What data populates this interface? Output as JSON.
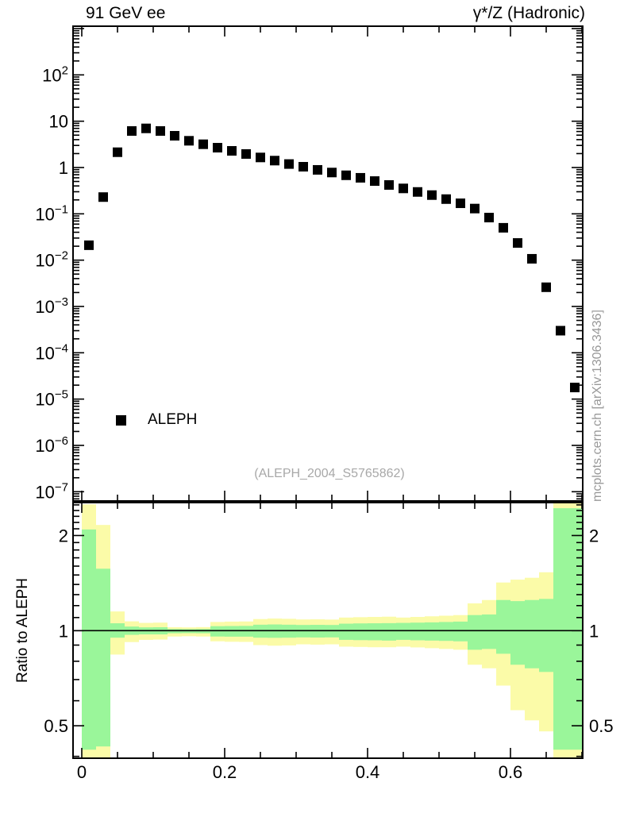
{
  "titles": {
    "left": "91 GeV ee",
    "right": "γ*/Z (Hadronic)"
  },
  "legend": {
    "items": [
      {
        "label": "ALEPH",
        "marker": "filled-black-square"
      }
    ]
  },
  "annotation": "(ALEPH_2004_S5765862)",
  "watermark": "mcplots.cern.ch [arXiv:1306.3436]",
  "ratio_axis_label": "Ratio to ALEPH",
  "colors": {
    "marker": "#000000",
    "frame": "#000000",
    "band_outer_yellow": "#fbfba8",
    "band_inner_green": "#9af69a",
    "gray_text": "#a8a8a8",
    "watermark_text": "#999999"
  },
  "chart_data": {
    "type": "scatter",
    "title": "91 GeV ee — γ*/Z (Hadronic)",
    "xlabel": "",
    "ylabel": "",
    "x_axis": {
      "range": [
        -0.012,
        0.701
      ],
      "major_ticks": [
        {
          "value": 0,
          "label": "0"
        },
        {
          "value": 0.2,
          "label": "0.2"
        },
        {
          "value": 0.4,
          "label": "0.4"
        },
        {
          "value": 0.6,
          "label": "0.6"
        }
      ],
      "minor_tick_step": 0.05
    },
    "main_panel": {
      "yscale": "log",
      "ylim": [
        6.3e-08,
        1120
      ],
      "ytick_labels": [
        {
          "value": 100,
          "mant": "10",
          "exp": "2"
        },
        {
          "value": 10,
          "mant": "10"
        },
        {
          "value": 1,
          "mant": "1"
        },
        {
          "value": 0.1,
          "mant": "10",
          "exp": "−1"
        },
        {
          "value": 0.01,
          "mant": "10",
          "exp": "−2"
        },
        {
          "value": 0.001,
          "mant": "10",
          "exp": "−3"
        },
        {
          "value": 0.0001,
          "mant": "10",
          "exp": "−4"
        },
        {
          "value": 1e-05,
          "mant": "10",
          "exp": "−5"
        },
        {
          "value": 1e-06,
          "mant": "10",
          "exp": "−6"
        },
        {
          "value": 1e-07,
          "mant": "10",
          "exp": "−7"
        }
      ],
      "series": [
        {
          "name": "ALEPH",
          "marker": "filled-square",
          "color": "#000000"
        }
      ],
      "points_x": [
        0.01,
        0.03,
        0.05,
        0.07,
        0.09,
        0.11,
        0.13,
        0.15,
        0.17,
        0.19,
        0.21,
        0.23,
        0.25,
        0.27,
        0.29,
        0.31,
        0.33,
        0.35,
        0.37,
        0.39,
        0.41,
        0.43,
        0.45,
        0.47,
        0.49,
        0.51,
        0.53,
        0.55,
        0.57,
        0.59,
        0.61,
        0.63,
        0.65,
        0.67,
        0.69
      ],
      "points_y": [
        0.021,
        0.23,
        2.14,
        6.15,
        7.0,
        6.15,
        4.85,
        3.78,
        3.18,
        2.68,
        2.29,
        1.96,
        1.65,
        1.41,
        1.19,
        1.04,
        0.89,
        0.78,
        0.68,
        0.6,
        0.51,
        0.42,
        0.354,
        0.297,
        0.254,
        0.208,
        0.169,
        0.13,
        0.083,
        0.05,
        0.0235,
        0.0107,
        0.0026,
        0.0003,
        1.78e-05
      ]
    },
    "ratio_panel": {
      "yscale": "log",
      "ylim": [
        0.394,
        2.54
      ],
      "unity_line": 1,
      "ytick_labels": [
        {
          "value": 2,
          "label": "2"
        },
        {
          "value": 1,
          "label": "1"
        },
        {
          "value": 0.5,
          "label": "0.5"
        }
      ],
      "minor_ticks": [
        0.4,
        0.6,
        0.7,
        0.8,
        0.9,
        1.1,
        1.2,
        1.3,
        1.4,
        1.5,
        1.6,
        1.7,
        1.8,
        1.9,
        2.1,
        2.2,
        2.3,
        2.4,
        2.5
      ],
      "bands": [
        {
          "x0": 0.0,
          "x1": 0.02,
          "outer": [
            0.39,
            2.51
          ],
          "inner": [
            0.42,
            2.09
          ]
        },
        {
          "x0": 0.02,
          "x1": 0.04,
          "outer": [
            0.39,
            2.16
          ],
          "inner": [
            0.43,
            1.57
          ]
        },
        {
          "x0": 0.04,
          "x1": 0.06,
          "outer": [
            0.84,
            1.15
          ],
          "inner": [
            0.95,
            1.055
          ]
        },
        {
          "x0": 0.06,
          "x1": 0.08,
          "outer": [
            0.92,
            1.07
          ],
          "inner": [
            0.97,
            1.03
          ]
        },
        {
          "x0": 0.08,
          "x1": 0.1,
          "outer": [
            0.935,
            1.058
          ],
          "inner": [
            0.973,
            1.024
          ]
        },
        {
          "x0": 0.1,
          "x1": 0.12,
          "outer": [
            0.937,
            1.06
          ],
          "inner": [
            0.973,
            1.025
          ]
        },
        {
          "x0": 0.12,
          "x1": 0.14,
          "outer": [
            0.958,
            1.025
          ],
          "inner": [
            0.981,
            1.012
          ]
        },
        {
          "x0": 0.14,
          "x1": 0.16,
          "outer": [
            0.96,
            1.024
          ],
          "inner": [
            0.982,
            1.011
          ]
        },
        {
          "x0": 0.16,
          "x1": 0.18,
          "outer": [
            0.958,
            1.026
          ],
          "inner": [
            0.981,
            1.012
          ]
        },
        {
          "x0": 0.18,
          "x1": 0.2,
          "outer": [
            0.925,
            1.065
          ],
          "inner": [
            0.958,
            1.033
          ]
        },
        {
          "x0": 0.2,
          "x1": 0.22,
          "outer": [
            0.922,
            1.068
          ],
          "inner": [
            0.957,
            1.034
          ]
        },
        {
          "x0": 0.22,
          "x1": 0.24,
          "outer": [
            0.921,
            1.069
          ],
          "inner": [
            0.957,
            1.035
          ]
        },
        {
          "x0": 0.24,
          "x1": 0.26,
          "outer": [
            0.9,
            1.088
          ],
          "inner": [
            0.95,
            1.044
          ]
        },
        {
          "x0": 0.26,
          "x1": 0.28,
          "outer": [
            0.896,
            1.092
          ],
          "inner": [
            0.949,
            1.046
          ]
        },
        {
          "x0": 0.28,
          "x1": 0.3,
          "outer": [
            0.898,
            1.09
          ],
          "inner": [
            0.95,
            1.044
          ]
        },
        {
          "x0": 0.3,
          "x1": 0.32,
          "outer": [
            0.905,
            1.085
          ],
          "inner": [
            0.952,
            1.042
          ]
        },
        {
          "x0": 0.32,
          "x1": 0.34,
          "outer": [
            0.903,
            1.086
          ],
          "inner": [
            0.951,
            1.043
          ]
        },
        {
          "x0": 0.34,
          "x1": 0.36,
          "outer": [
            0.905,
            1.084
          ],
          "inner": [
            0.952,
            1.042
          ]
        },
        {
          "x0": 0.36,
          "x1": 0.38,
          "outer": [
            0.89,
            1.1
          ],
          "inner": [
            0.935,
            1.052
          ]
        },
        {
          "x0": 0.38,
          "x1": 0.4,
          "outer": [
            0.888,
            1.103
          ],
          "inner": [
            0.933,
            1.054
          ]
        },
        {
          "x0": 0.4,
          "x1": 0.42,
          "outer": [
            0.886,
            1.105
          ],
          "inner": [
            0.932,
            1.055
          ]
        },
        {
          "x0": 0.42,
          "x1": 0.44,
          "outer": [
            0.886,
            1.107
          ],
          "inner": [
            0.93,
            1.056
          ]
        },
        {
          "x0": 0.44,
          "x1": 0.46,
          "outer": [
            0.89,
            1.1
          ],
          "inner": [
            0.935,
            1.058
          ]
        },
        {
          "x0": 0.46,
          "x1": 0.48,
          "outer": [
            0.885,
            1.105
          ],
          "inner": [
            0.932,
            1.06
          ]
        },
        {
          "x0": 0.48,
          "x1": 0.5,
          "outer": [
            0.88,
            1.11
          ],
          "inner": [
            0.93,
            1.062
          ]
        },
        {
          "x0": 0.5,
          "x1": 0.52,
          "outer": [
            0.875,
            1.115
          ],
          "inner": [
            0.928,
            1.065
          ]
        },
        {
          "x0": 0.52,
          "x1": 0.54,
          "outer": [
            0.87,
            1.12
          ],
          "inner": [
            0.925,
            1.068
          ]
        },
        {
          "x0": 0.54,
          "x1": 0.56,
          "outer": [
            0.78,
            1.22
          ],
          "inner": [
            0.87,
            1.12
          ]
        },
        {
          "x0": 0.56,
          "x1": 0.58,
          "outer": [
            0.76,
            1.25
          ],
          "inner": [
            0.875,
            1.125
          ]
        },
        {
          "x0": 0.58,
          "x1": 0.6,
          "outer": [
            0.67,
            1.42
          ],
          "inner": [
            0.845,
            1.25
          ]
        },
        {
          "x0": 0.6,
          "x1": 0.62,
          "outer": [
            0.56,
            1.45
          ],
          "inner": [
            0.78,
            1.24
          ]
        },
        {
          "x0": 0.62,
          "x1": 0.64,
          "outer": [
            0.52,
            1.47
          ],
          "inner": [
            0.76,
            1.25
          ]
        },
        {
          "x0": 0.64,
          "x1": 0.66,
          "outer": [
            0.48,
            1.53
          ],
          "inner": [
            0.74,
            1.26
          ]
        },
        {
          "x0": 0.66,
          "x1": 0.68,
          "outer": [
            0.39,
            2.54
          ],
          "inner": [
            0.42,
            2.44
          ]
        },
        {
          "x0": 0.68,
          "x1": 0.7,
          "outer": [
            0.39,
            2.54
          ],
          "inner": [
            0.42,
            2.44
          ]
        }
      ]
    }
  }
}
